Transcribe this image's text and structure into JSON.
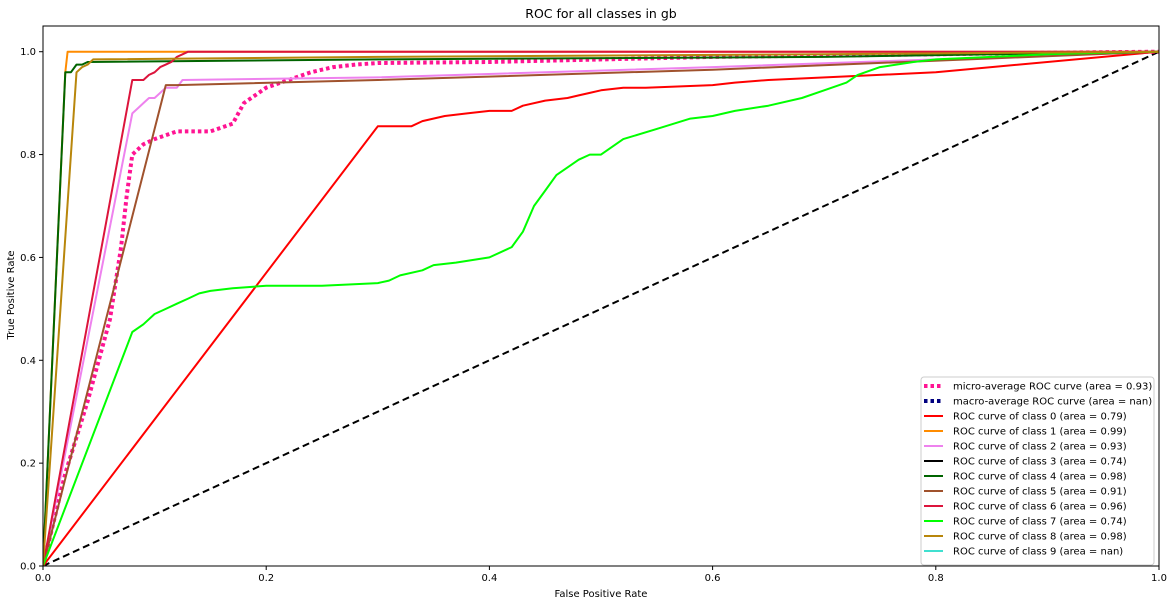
{
  "chart_data": {
    "type": "line",
    "title": "ROC for all classes in gb",
    "xlabel": "False Positive Rate",
    "ylabel": "True Positive Rate",
    "xlim": [
      0.0,
      1.0
    ],
    "ylim": [
      0.0,
      1.05
    ],
    "x_ticks": [
      "0.0",
      "0.2",
      "0.4",
      "0.6",
      "0.8",
      "1.0"
    ],
    "y_ticks": [
      "0.0",
      "0.2",
      "0.4",
      "0.6",
      "0.8",
      "1.0"
    ],
    "grid": false,
    "legend_position": "lower-right",
    "diagonal": {
      "x": [
        0,
        1
      ],
      "y": [
        0,
        1
      ],
      "color": "#000000",
      "style": "dashed"
    },
    "series": [
      {
        "name": "micro-average ROC curve (area = 0.93)",
        "color": "#ff1493",
        "style": "dotted",
        "width": 4,
        "x": [
          0,
          0.02,
          0.04,
          0.06,
          0.07,
          0.075,
          0.08,
          0.09,
          0.1,
          0.12,
          0.15,
          0.17,
          0.18,
          0.2,
          0.22,
          0.24,
          0.26,
          0.28,
          0.3,
          0.4,
          0.6,
          0.8,
          0.9,
          1.0
        ],
        "y": [
          0,
          0.18,
          0.32,
          0.48,
          0.62,
          0.72,
          0.8,
          0.82,
          0.83,
          0.845,
          0.845,
          0.86,
          0.9,
          0.93,
          0.945,
          0.96,
          0.97,
          0.975,
          0.978,
          0.98,
          0.99,
          0.995,
          0.998,
          1.0
        ]
      },
      {
        "name": "macro-average ROC curve (area = nan)",
        "color": "#000080",
        "style": "dotted",
        "width": 4,
        "x": [],
        "y": []
      },
      {
        "name": "ROC curve of class 0 (area = 0.79)",
        "color": "#ff0000",
        "style": "solid",
        "width": 2,
        "x": [
          0,
          0.3,
          0.33,
          0.34,
          0.36,
          0.38,
          0.4,
          0.42,
          0.43,
          0.45,
          0.47,
          0.48,
          0.49,
          0.5,
          0.52,
          0.54,
          0.6,
          0.62,
          0.65,
          0.8,
          1.0
        ],
        "y": [
          0,
          0.855,
          0.855,
          0.865,
          0.875,
          0.88,
          0.885,
          0.885,
          0.895,
          0.905,
          0.91,
          0.915,
          0.92,
          0.925,
          0.93,
          0.93,
          0.935,
          0.94,
          0.945,
          0.96,
          1.0
        ]
      },
      {
        "name": "ROC curve of class 1 (area = 0.99)",
        "color": "#ff8c00",
        "style": "solid",
        "width": 2,
        "x": [
          0,
          0.02,
          0.022,
          1.0
        ],
        "y": [
          0,
          0.96,
          1.0,
          1.0
        ]
      },
      {
        "name": "ROC curve of class 2 (area = 0.93)",
        "color": "#ee82ee",
        "style": "solid",
        "width": 2,
        "x": [
          0,
          0.08,
          0.085,
          0.09,
          0.095,
          0.1,
          0.11,
          0.12,
          0.125,
          0.3,
          0.6,
          1.0
        ],
        "y": [
          0,
          0.88,
          0.89,
          0.9,
          0.91,
          0.91,
          0.93,
          0.93,
          0.945,
          0.95,
          0.97,
          1.0
        ]
      },
      {
        "name": "ROC curve of class 3 (area = 0.74)",
        "color": "#000000",
        "style": "solid",
        "width": 2,
        "x": [],
        "y": []
      },
      {
        "name": "ROC curve of class 4 (area = 0.98)",
        "color": "#006400",
        "style": "solid",
        "width": 2,
        "x": [
          0,
          0.02,
          0.025,
          0.03,
          0.035,
          0.04,
          0.3,
          0.7,
          1.0
        ],
        "y": [
          0,
          0.96,
          0.96,
          0.975,
          0.975,
          0.98,
          0.985,
          0.99,
          1.0
        ]
      },
      {
        "name": "ROC curve of class 5 (area = 0.91)",
        "color": "#a0522d",
        "style": "solid",
        "width": 2,
        "x": [
          0,
          0.11,
          0.12,
          0.3,
          0.6,
          1.0
        ],
        "y": [
          0,
          0.935,
          0.935,
          0.945,
          0.965,
          1.0
        ]
      },
      {
        "name": "ROC curve of class 6 (area = 0.96)",
        "color": "#dc143c",
        "style": "solid",
        "width": 2,
        "x": [
          0,
          0.08,
          0.09,
          0.095,
          0.1,
          0.105,
          0.11,
          0.115,
          0.12,
          0.125,
          0.13,
          0.3,
          1.0
        ],
        "y": [
          0,
          0.945,
          0.945,
          0.955,
          0.96,
          0.97,
          0.975,
          0.98,
          0.99,
          0.995,
          1.0,
          1.0,
          1.0
        ]
      },
      {
        "name": "ROC curve of class 7 (area = 0.74)",
        "color": "#00ff00",
        "style": "solid",
        "width": 2,
        "x": [
          0,
          0.08,
          0.09,
          0.1,
          0.11,
          0.12,
          0.13,
          0.14,
          0.15,
          0.17,
          0.2,
          0.25,
          0.3,
          0.31,
          0.32,
          0.34,
          0.35,
          0.37,
          0.4,
          0.42,
          0.43,
          0.44,
          0.45,
          0.46,
          0.47,
          0.48,
          0.49,
          0.5,
          0.52,
          0.55,
          0.58,
          0.6,
          0.62,
          0.65,
          0.68,
          0.7,
          0.72,
          0.73,
          0.75,
          0.78,
          0.8,
          0.85,
          0.9,
          0.95,
          1.0
        ],
        "y": [
          0,
          0.455,
          0.47,
          0.49,
          0.5,
          0.51,
          0.52,
          0.53,
          0.535,
          0.54,
          0.545,
          0.545,
          0.55,
          0.555,
          0.565,
          0.575,
          0.585,
          0.59,
          0.6,
          0.62,
          0.65,
          0.7,
          0.73,
          0.76,
          0.775,
          0.79,
          0.8,
          0.8,
          0.83,
          0.85,
          0.87,
          0.875,
          0.885,
          0.895,
          0.91,
          0.925,
          0.94,
          0.955,
          0.97,
          0.98,
          0.985,
          0.99,
          0.995,
          0.998,
          1.0
        ]
      },
      {
        "name": "ROC curve of class 8 (area = 0.98)",
        "color": "#b8860b",
        "style": "solid",
        "width": 2,
        "x": [
          0,
          0.03,
          0.035,
          0.04,
          0.045,
          0.3,
          0.7,
          1.0
        ],
        "y": [
          0,
          0.96,
          0.97,
          0.975,
          0.985,
          0.99,
          0.995,
          1.0
        ]
      },
      {
        "name": "ROC curve of class 9 (area = nan)",
        "color": "#40e0d0",
        "style": "solid",
        "width": 2,
        "x": [],
        "y": []
      }
    ]
  }
}
